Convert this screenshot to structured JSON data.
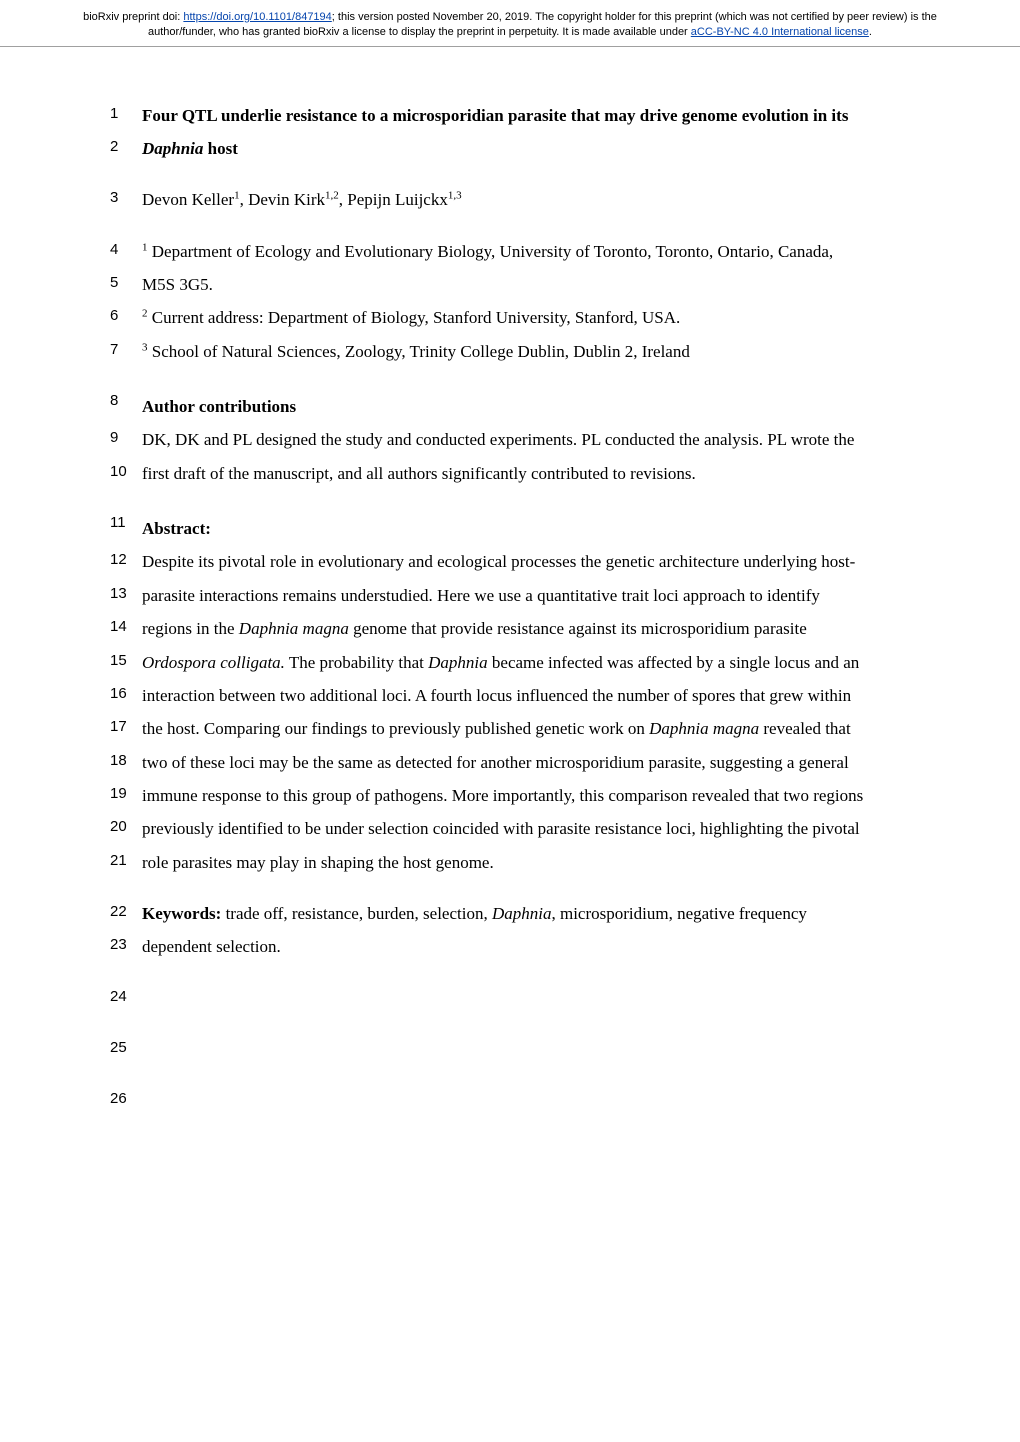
{
  "banner": {
    "prefix": "bioRxiv preprint doi: ",
    "doi_url": "https://doi.org/10.1101/847194",
    "middle": "; this version posted November 20, 2019. The copyright holder for this preprint (which was not certified by peer review) is the author/funder, who has granted bioRxiv a license to display the preprint in perpetuity. It is made available under ",
    "license_text": "aCC-BY-NC 4.0 International license",
    "suffix": "."
  },
  "lines": {
    "l1": "Four QTL underlie resistance to a microsporidian parasite that may drive genome evolution in its",
    "l2_pre": "Daphnia",
    "l2_post": " host",
    "l3_a": "Devon Keller",
    "l3_b": ", Devin Kirk",
    "l3_c": ", Pepijn Luijckx",
    "l3_s1": "1",
    "l3_s2": "1,2",
    "l3_s3": "1,3",
    "l4_s": "1",
    "l4": " Department of Ecology and Evolutionary Biology, University of Toronto, Toronto, Ontario, Canada,",
    "l5": "M5S 3G5.",
    "l6_s": "2",
    "l6": " Current address: Department of Biology, Stanford University, Stanford, USA.",
    "l7_s": "3",
    "l7": " School of Natural Sciences, Zoology, Trinity College Dublin, Dublin 2, Ireland",
    "l8": "Author contributions",
    "l9": "DK, DK and PL designed the study and conducted experiments. PL conducted the analysis. PL wrote the",
    "l10": "first draft of the manuscript, and all authors significantly contributed to revisions.",
    "l11": "Abstract:",
    "l12": "Despite its pivotal role in evolutionary and ecological processes the genetic architecture underlying host-",
    "l13": "parasite interactions remains understudied. Here we use a quantitative trait loci approach to identify",
    "l14_a": "regions in the ",
    "l14_i": "Daphnia magna",
    "l14_b": " genome that provide resistance against its microsporidium parasite",
    "l15_i1": "Ordospora colligata.",
    "l15_a": " The probability that ",
    "l15_i2": "Daphnia",
    "l15_b": " became infected was affected by a single locus and an",
    "l16": "interaction between two additional loci. A fourth locus influenced the number of spores that grew within",
    "l17_a": "the host. Comparing our findings to previously published genetic work on ",
    "l17_i": "Daphnia magna",
    "l17_b": " revealed that",
    "l18": "two of these loci may be the same as detected for another microsporidium parasite, suggesting a general",
    "l19": "immune response to this group of pathogens. More importantly, this comparison revealed that two regions",
    "l20": "previously identified to be under selection coincided with parasite resistance loci, highlighting the pivotal",
    "l21": "role parasites may play in shaping the host genome.",
    "l22_b": "Keywords:",
    "l22_a": " trade off, resistance, burden, selection, ",
    "l22_i": "Daphnia",
    "l22_c": ", microsporidium, negative frequency",
    "l23": "dependent selection."
  },
  "line_numbers": {
    "n1": "1",
    "n2": "2",
    "n3": "3",
    "n4": "4",
    "n5": "5",
    "n6": "6",
    "n7": "7",
    "n8": "8",
    "n9": "9",
    "n10": "10",
    "n11": "11",
    "n12": "12",
    "n13": "13",
    "n14": "14",
    "n15": "15",
    "n16": "16",
    "n17": "17",
    "n18": "18",
    "n19": "19",
    "n20": "20",
    "n21": "21",
    "n22": "22",
    "n23": "23",
    "n24": "24",
    "n25": "25",
    "n26": "26"
  },
  "colors": {
    "link": "#0645ad",
    "text": "#000000",
    "border": "#a0a0a0",
    "bg": "#ffffff"
  },
  "fonts": {
    "body_family": "Times New Roman",
    "banner_family": "Arial",
    "body_size_pt": 12,
    "banner_size_pt": 8,
    "linenum_size_pt": 11
  }
}
